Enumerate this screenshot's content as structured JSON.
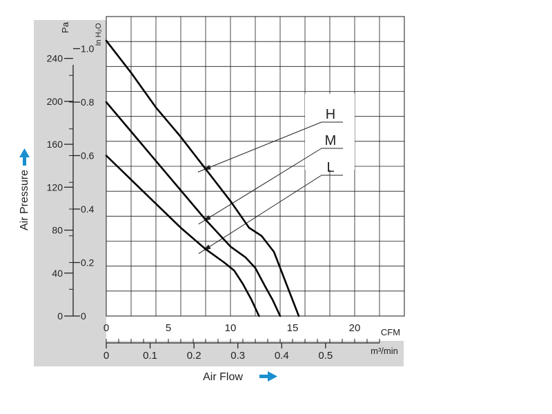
{
  "colors": {
    "panel": "#d6d6d6",
    "grid": "#1a1a1a",
    "curve": "#000000",
    "arrow": "#1a8fd0"
  },
  "chart_data": {
    "type": "line",
    "title": "",
    "xlabel": "Air Flow",
    "ylabel": "Air Pressure",
    "x_units": "CFM",
    "x2_units": "m³/min",
    "y_units": "Pa",
    "y2_units": "In H₂O",
    "xlim": [
      0,
      24
    ],
    "ylim": [
      0,
      1.12
    ],
    "grid": true,
    "x_ticks": [
      "0",
      "5",
      "10",
      "15",
      "20"
    ],
    "x2_ticks": [
      "0",
      "0.1",
      "0.2",
      "0.3",
      "0.4",
      "0.5"
    ],
    "y_inH2O_ticks": [
      "1.0",
      "0.8",
      "0.6",
      "0.4",
      "0.2",
      "0"
    ],
    "y_pa_ticks": [
      "240",
      "200",
      "160",
      "120",
      "80",
      "40",
      "0"
    ],
    "series": [
      {
        "name": "H",
        "x": [
          0,
          2,
          4,
          6,
          8,
          10,
          11.5,
          12.5,
          13.5,
          14.5,
          15.5
        ],
        "y": [
          1.03,
          0.91,
          0.78,
          0.67,
          0.55,
          0.43,
          0.33,
          0.3,
          0.24,
          0.12,
          0.0
        ]
      },
      {
        "name": "M",
        "x": [
          0,
          2,
          4,
          6,
          8,
          10,
          11.2,
          12,
          12.8,
          13.4,
          14.0
        ],
        "y": [
          0.8,
          0.69,
          0.58,
          0.47,
          0.36,
          0.26,
          0.22,
          0.18,
          0.11,
          0.06,
          0.0
        ]
      },
      {
        "name": "L",
        "x": [
          0,
          2,
          4,
          6,
          8,
          9.5,
          10.3,
          11,
          11.7,
          12.3
        ],
        "y": [
          0.6,
          0.51,
          0.42,
          0.33,
          0.25,
          0.2,
          0.17,
          0.12,
          0.06,
          0.0
        ]
      }
    ],
    "legend": [
      "H",
      "M",
      "L"
    ]
  }
}
